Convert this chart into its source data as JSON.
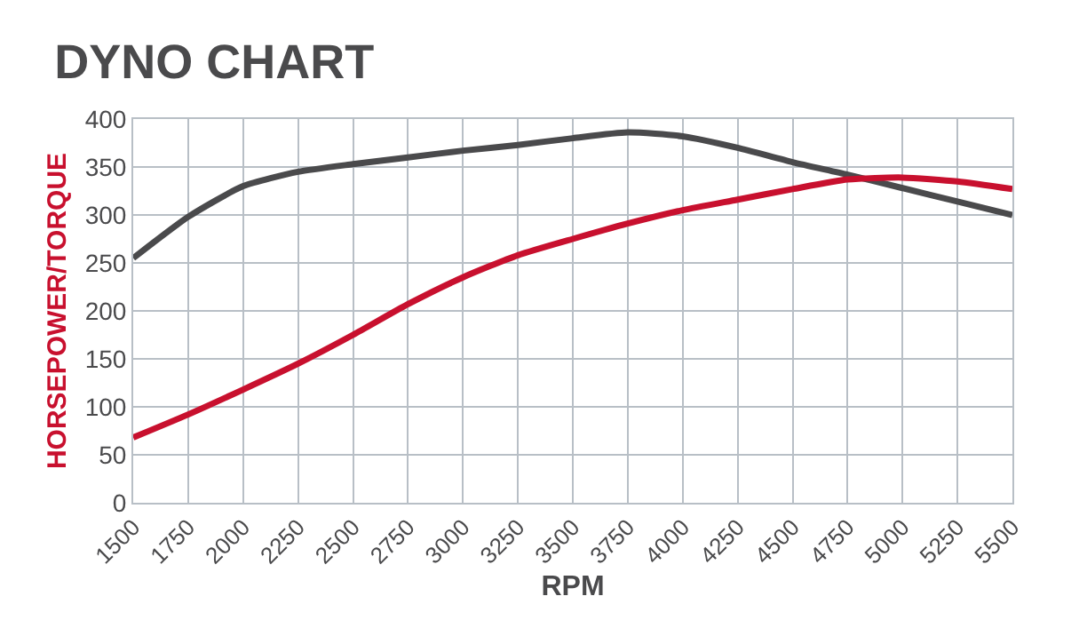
{
  "chart_data": {
    "type": "line",
    "title": "DYNO CHART",
    "xlabel": "RPM",
    "ylabel": "HORSEPOWER/TORQUE",
    "x": [
      1500,
      1750,
      2000,
      2250,
      2500,
      2750,
      3000,
      3250,
      3500,
      3750,
      4000,
      4250,
      4500,
      4750,
      5000,
      5250,
      5500
    ],
    "series": [
      {
        "color": "#4a4a4c",
        "values": [
          255,
          298,
          330,
          345,
          353,
          360,
          367,
          373,
          380,
          386,
          382,
          370,
          355,
          342,
          328,
          314,
          300
        ]
      },
      {
        "color": "#c8102e",
        "values": [
          68,
          92,
          118,
          145,
          175,
          207,
          235,
          258,
          275,
          291,
          305,
          316,
          327,
          337,
          339,
          335,
          327
        ]
      }
    ],
    "xlim": [
      1500,
      5500
    ],
    "xticks": [
      1500,
      1750,
      2000,
      2250,
      2500,
      2750,
      3000,
      3250,
      3500,
      3750,
      4000,
      4250,
      4500,
      4750,
      5000,
      5250,
      5500
    ],
    "ylim": [
      0,
      400
    ],
    "yticks": [
      0,
      50,
      100,
      150,
      200,
      250,
      300,
      350,
      400
    ],
    "grid": true,
    "marker": "none",
    "line_style": "solid"
  }
}
